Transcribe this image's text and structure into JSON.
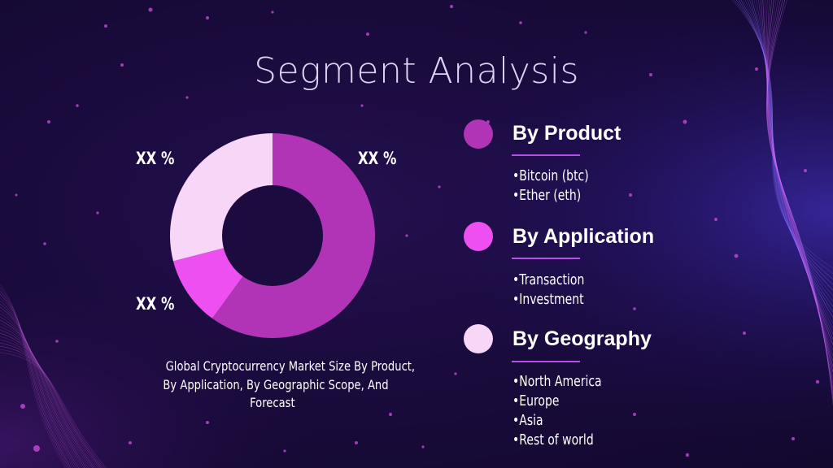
{
  "slide": {
    "title": "Segment Analysis",
    "caption_lines": [
      "Global Cryptocurrency Market Size By Product,",
      "By Application, By Geographic Scope, And",
      "Forecast"
    ]
  },
  "chart_data": {
    "type": "pie",
    "donut": true,
    "slices": [
      {
        "value": 60,
        "label": "XX %",
        "color": "#b133b6"
      },
      {
        "value": 11,
        "label": "XX %",
        "color": "#ee4ff0"
      },
      {
        "value": 29,
        "label": "XX %",
        "color": "#f7d6f7"
      }
    ]
  },
  "segments": [
    {
      "title": "By Product",
      "color": "#b133b6",
      "items": [
        "Bitcoin (btc)",
        "Ether (eth)"
      ]
    },
    {
      "title": "By Application",
      "color": "#ee4ff0",
      "items": [
        "Transaction",
        "Investment"
      ]
    },
    {
      "title": "By Geography",
      "color": "#f7d6f7",
      "items": [
        "North America",
        "Europe",
        "Asia",
        "Rest of world"
      ]
    }
  ],
  "colors": {
    "background": "#1a0b3d",
    "underline": "#b450e6",
    "title": "#dcd2f2"
  }
}
